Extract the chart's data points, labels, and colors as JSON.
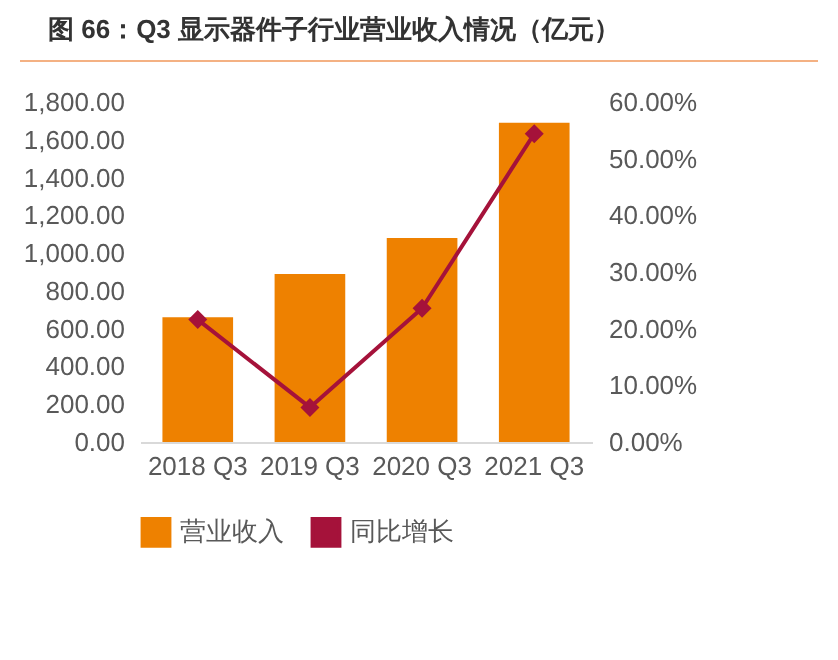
{
  "chart_data": {
    "type": "bar",
    "title": "图 66：Q3 显示器件子行业营业收入情况（亿元）",
    "categories": [
      "2018 Q3",
      "2019 Q3",
      "2020 Q3",
      "2021 Q3"
    ],
    "series": [
      {
        "name": "营业收入",
        "color": "#ee8100",
        "values": [
          660,
          890,
          1080,
          1690
        ]
      },
      {
        "name": "同比增长",
        "type": "line",
        "axis": "y2",
        "color": "#a5123a",
        "values": [
          21.6,
          6.1,
          23.6,
          54.4
        ]
      }
    ],
    "ylim": [
      0,
      1800
    ],
    "yticks": [
      {
        "value": 0,
        "label": "0.00"
      },
      {
        "value": 200,
        "label": "200.00"
      },
      {
        "value": 400,
        "label": "400.00"
      },
      {
        "value": 600,
        "label": "600.00"
      },
      {
        "value": 800,
        "label": "800.00"
      },
      {
        "value": 1000,
        "label": "1,000.00"
      },
      {
        "value": 1200,
        "label": "1,200.00"
      },
      {
        "value": 1400,
        "label": "1,400.00"
      },
      {
        "value": 1600,
        "label": "1,600.00"
      },
      {
        "value": 1800,
        "label": "1,800.00"
      }
    ],
    "y2lim": [
      0,
      60
    ],
    "y2ticks": [
      {
        "value": 0,
        "label": "0.00%"
      },
      {
        "value": 10,
        "label": "10.00%"
      },
      {
        "value": 20,
        "label": "20.00%"
      },
      {
        "value": 30,
        "label": "30.00%"
      },
      {
        "value": 40,
        "label": "40.00%"
      },
      {
        "value": 50,
        "label": "50.00%"
      },
      {
        "value": 60,
        "label": "60.00%"
      }
    ],
    "marker": "diamond",
    "legend": "bottom",
    "grid": false
  }
}
